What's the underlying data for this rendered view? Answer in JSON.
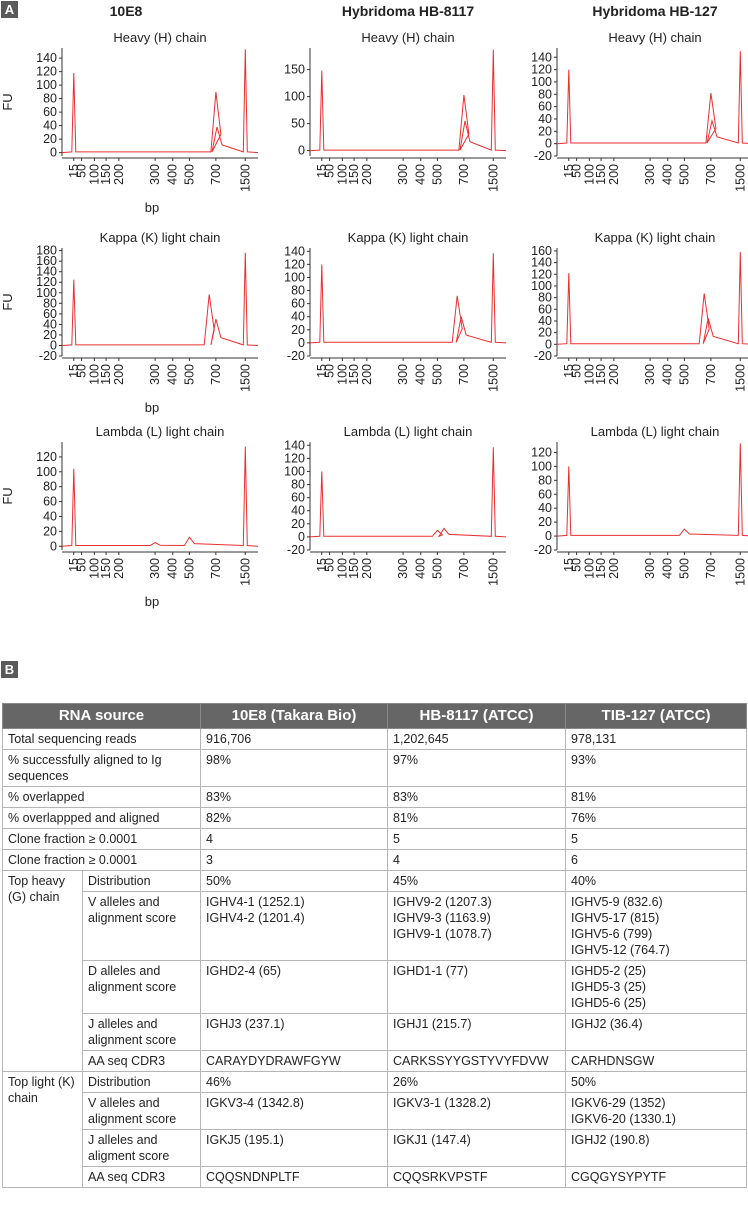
{
  "panel_a": {
    "label": "A"
  },
  "panel_b": {
    "label": "B"
  },
  "chart_data": [
    {
      "type": "line",
      "sample": "10E8",
      "title": "Heavy (H) chain",
      "ylabel": "FU",
      "xlabel": "bp",
      "x_ticks": [
        "15",
        "50",
        "100",
        "150",
        "200",
        "300",
        "400",
        "500",
        "700",
        "1500"
      ],
      "y_ticks": [
        "0",
        "20",
        "40",
        "60",
        "80",
        "100",
        "120",
        "140"
      ],
      "ylim": [
        -5,
        155
      ],
      "series": [
        {
          "values": [
            [
              15,
              118
            ],
            [
              700,
              90
            ],
            [
              730,
              38
            ],
            [
              1500,
              153
            ]
          ]
        }
      ]
    },
    {
      "type": "line",
      "sample": "Hybridoma HB-8117",
      "title": "Heavy (H) chain",
      "ylabel": "FU",
      "xlabel": "bp",
      "x_ticks": [
        "15",
        "50",
        "100",
        "150",
        "200",
        "300",
        "400",
        "500",
        "700",
        "1500"
      ],
      "y_ticks": [
        "0",
        "50",
        "100",
        "150"
      ],
      "ylim": [
        -10,
        190
      ],
      "series": [
        {
          "values": [
            [
              15,
              148
            ],
            [
              700,
              103
            ],
            [
              730,
              55
            ],
            [
              1500,
              187
            ]
          ]
        }
      ]
    },
    {
      "type": "line",
      "sample": "Hybridoma HB-127",
      "title": "Heavy (H) chain",
      "ylabel": "FU",
      "xlabel": "bp",
      "x_ticks": [
        "15",
        "50",
        "100",
        "150",
        "200",
        "300",
        "400",
        "500",
        "700",
        "1500"
      ],
      "y_ticks": [
        "-20",
        "0",
        "20",
        "40",
        "60",
        "80",
        "100",
        "120",
        "140"
      ],
      "ylim": [
        -20,
        155
      ],
      "series": [
        {
          "values": [
            [
              15,
              120
            ],
            [
              700,
              82
            ],
            [
              730,
              37
            ],
            [
              1500,
              150
            ]
          ]
        }
      ]
    },
    {
      "type": "line",
      "sample": "10E8",
      "title": "Kappa (K) light chain",
      "ylabel": "FU",
      "xlabel": "bp",
      "x_ticks": [
        "15",
        "50",
        "100",
        "150",
        "200",
        "300",
        "400",
        "500",
        "700",
        "1500"
      ],
      "y_ticks": [
        "-20",
        "0",
        "20",
        "40",
        "60",
        "80",
        "100",
        "120",
        "140",
        "160",
        "180"
      ],
      "ylim": [
        -20,
        185
      ],
      "series": [
        {
          "values": [
            [
              15,
              125
            ],
            [
              650,
              97
            ],
            [
              700,
              50
            ],
            [
              1500,
              176
            ]
          ]
        }
      ]
    },
    {
      "type": "line",
      "sample": "Hybridoma HB-8117",
      "title": "Kappa (K) light chain",
      "ylabel": "FU",
      "xlabel": "bp",
      "x_ticks": [
        "15",
        "50",
        "100",
        "150",
        "200",
        "300",
        "400",
        "500",
        "700",
        "1500"
      ],
      "y_ticks": [
        "-20",
        "0",
        "20",
        "40",
        "60",
        "80",
        "100",
        "120",
        "140"
      ],
      "ylim": [
        -20,
        145
      ],
      "series": [
        {
          "values": [
            [
              15,
              120
            ],
            [
              650,
              72
            ],
            [
              680,
              40
            ],
            [
              1500,
              137
            ]
          ]
        }
      ]
    },
    {
      "type": "line",
      "sample": "Hybridoma HB-127",
      "title": "Kappa (K) light chain",
      "ylabel": "FU",
      "xlabel": "bp",
      "x_ticks": [
        "15",
        "50",
        "100",
        "150",
        "200",
        "300",
        "400",
        "500",
        "700",
        "1500"
      ],
      "y_ticks": [
        "-20",
        "0",
        "20",
        "40",
        "60",
        "80",
        "100",
        "120",
        "140",
        "160"
      ],
      "ylim": [
        -20,
        165
      ],
      "series": [
        {
          "values": [
            [
              15,
              122
            ],
            [
              650,
              87
            ],
            [
              680,
              45
            ],
            [
              1500,
              158
            ]
          ]
        }
      ]
    },
    {
      "type": "line",
      "sample": "10E8",
      "title": "Lambda (L) light chain",
      "ylabel": "FU",
      "xlabel": "bp",
      "x_ticks": [
        "15",
        "50",
        "100",
        "150",
        "200",
        "300",
        "400",
        "500",
        "700",
        "1500"
      ],
      "y_ticks": [
        "0",
        "20",
        "40",
        "60",
        "80",
        "100",
        "120"
      ],
      "ylim": [
        -5,
        140
      ],
      "series": [
        {
          "values": [
            [
              15,
              104
            ],
            [
              300,
              5
            ],
            [
              500,
              12
            ],
            [
              1500,
              134
            ]
          ]
        }
      ]
    },
    {
      "type": "line",
      "sample": "Hybridoma HB-8117",
      "title": "Lambda (L) light chain",
      "ylabel": "FU",
      "xlabel": "bp",
      "x_ticks": [
        "15",
        "50",
        "100",
        "150",
        "200",
        "300",
        "400",
        "500",
        "700",
        "1500"
      ],
      "y_ticks": [
        "-20",
        "0",
        "20",
        "40",
        "60",
        "80",
        "100",
        "120",
        "140"
      ],
      "ylim": [
        -20,
        145
      ],
      "series": [
        {
          "values": [
            [
              15,
              100
            ],
            [
              500,
              10
            ],
            [
              550,
              13
            ],
            [
              1500,
              137
            ]
          ]
        }
      ]
    },
    {
      "type": "line",
      "sample": "Hybridoma HB-127",
      "title": "Lambda (L) light chain",
      "ylabel": "FU",
      "xlabel": "bp",
      "x_ticks": [
        "15",
        "50",
        "100",
        "150",
        "200",
        "300",
        "400",
        "500",
        "700",
        "1500"
      ],
      "y_ticks": [
        "-20",
        "0",
        "20",
        "40",
        "60",
        "80",
        "100",
        "120"
      ],
      "ylim": [
        -20,
        135
      ],
      "series": [
        {
          "values": [
            [
              15,
              100
            ],
            [
              500,
              10
            ],
            [
              1500,
              133
            ]
          ]
        }
      ]
    }
  ],
  "table": {
    "headers": [
      "RNA source",
      "10E8 (Takara Bio)",
      "HB-8117 (ATCC)",
      "TIB-127 (ATCC)"
    ],
    "rows": [
      {
        "label": "Total sequencing reads",
        "values": [
          "916,706",
          "1,202,645",
          "978,131"
        ]
      },
      {
        "label": "% successfully aligned to Ig sequences",
        "values": [
          "98%",
          "97%",
          "93%"
        ]
      },
      {
        "label": "% overlapped",
        "values": [
          "83%",
          "83%",
          "81%"
        ]
      },
      {
        "label": "% overlappped and aligned",
        "values": [
          "82%",
          "81%",
          "76%"
        ]
      },
      {
        "label": "Clone fraction ≥ 0.0001",
        "values": [
          "4",
          "5",
          "5"
        ]
      },
      {
        "label": "Clone fraction ≥ 0.0001",
        "values": [
          "3",
          "4",
          "6"
        ]
      }
    ],
    "groups": [
      {
        "label": "Top heavy (G) chain",
        "rows": [
          {
            "label": "Distribution",
            "values": [
              [
                "50%"
              ],
              [
                "45%"
              ],
              [
                "40%"
              ]
            ]
          },
          {
            "label": "V alleles and alignment score",
            "values": [
              [
                "IGHV4-1 (1252.1)",
                "IGHV4-2 (1201.4)"
              ],
              [
                "IGHV9-2 (1207.3)",
                "IGHV9-3 (1163.9)",
                "IGHV9-1 (1078.7)"
              ],
              [
                "IGHV5-9 (832.6)",
                "IGHV5-17 (815)",
                "IGHV5-6 (799)",
                "IGHV5-12 (764.7)"
              ]
            ]
          },
          {
            "label": "D alleles and alignment score",
            "values": [
              [
                "IGHD2-4 (65)"
              ],
              [
                "IGHD1-1 (77)"
              ],
              [
                "IGHD5-2 (25)",
                "IGHD5-3 (25)",
                "IGHD5-6 (25)"
              ]
            ]
          },
          {
            "label": "J alleles and alignment score",
            "values": [
              [
                "IGHJ3 (237.1)"
              ],
              [
                "IGHJ1 (215.7)"
              ],
              [
                "IGHJ2 (36.4)"
              ]
            ]
          },
          {
            "label": "AA seq CDR3",
            "values": [
              [
                "CARAYDYDRAWFGYW"
              ],
              [
                "CARKSSYYGSTYVYFDVW"
              ],
              [
                "CARHDNSGW"
              ]
            ]
          }
        ]
      },
      {
        "label": "Top light (K) chain",
        "rows": [
          {
            "label": "Distribution",
            "values": [
              [
                "46%"
              ],
              [
                "26%"
              ],
              [
                "50%"
              ]
            ]
          },
          {
            "label": "V alleles and alignment score",
            "values": [
              [
                "IGKV3-4 (1342.8)"
              ],
              [
                "IGKV3-1 (1328.2)"
              ],
              [
                "IGKV6-29 (1352)",
                "IGKV6-20 (1330.1)"
              ]
            ]
          },
          {
            "label": "J alleles and aligment score",
            "values": [
              [
                "IGKJ5 (195.1)"
              ],
              [
                "IGKJ1 (147.4)"
              ],
              [
                "IGHJ2 (190.8)"
              ]
            ]
          },
          {
            "label": "AA seq CDR3",
            "values": [
              [
                "CQQSNDNPLTF"
              ],
              [
                "CQQSRKVPSTF"
              ],
              [
                "CGQGYSYPYTF"
              ]
            ]
          }
        ]
      }
    ]
  }
}
